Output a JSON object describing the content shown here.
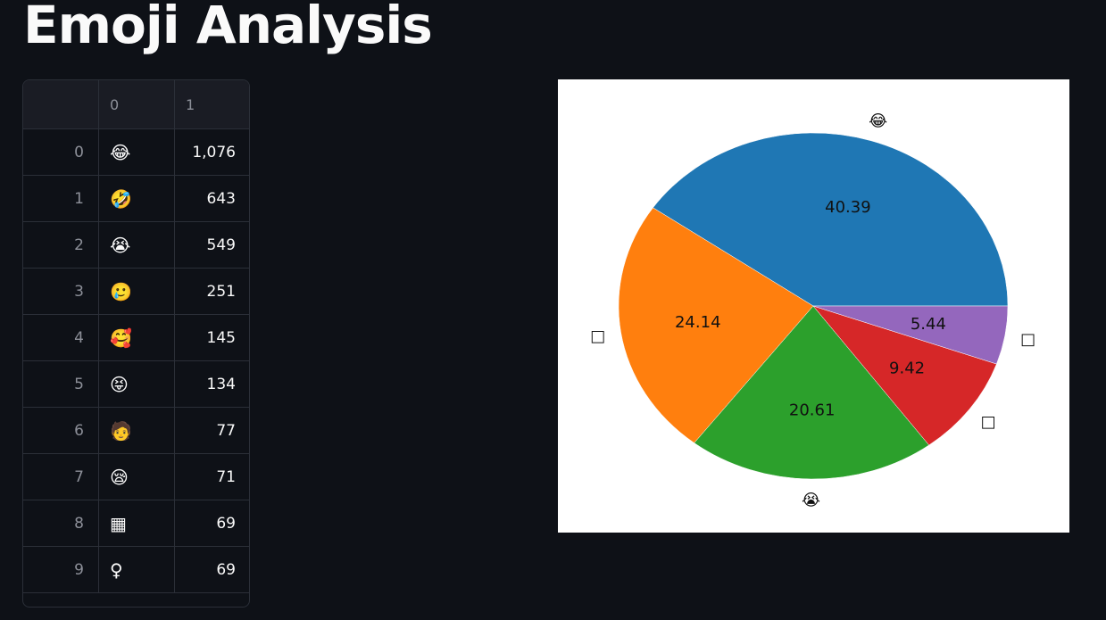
{
  "title": "Emoji Analysis",
  "table": {
    "columns": [
      "",
      "0",
      "1"
    ],
    "rows": [
      {
        "index": "0",
        "emoji": "😂",
        "count": "1,076"
      },
      {
        "index": "1",
        "emoji": "🤣",
        "count": "643"
      },
      {
        "index": "2",
        "emoji": "😭",
        "count": "549"
      },
      {
        "index": "3",
        "emoji": "🥲",
        "count": "251"
      },
      {
        "index": "4",
        "emoji": "🥰",
        "count": "145"
      },
      {
        "index": "5",
        "emoji": "😝",
        "count": "134"
      },
      {
        "index": "6",
        "emoji": "🧑",
        "count": "77"
      },
      {
        "index": "7",
        "emoji": "😪",
        "count": "71"
      },
      {
        "index": "8",
        "emoji": "▦",
        "count": "69"
      },
      {
        "index": "9",
        "emoji": "♀",
        "count": "69"
      }
    ]
  },
  "chart_data": {
    "type": "pie",
    "labels": [
      "😂",
      "□",
      "😭",
      "□",
      "□"
    ],
    "values": [
      40.39,
      24.14,
      20.61,
      9.42,
      5.44
    ],
    "value_labels": [
      "40.39",
      "24.14",
      "20.61",
      "9.42",
      "5.44"
    ],
    "colors": [
      "#1f77b4",
      "#ff7f0e",
      "#2ca02c",
      "#d62728",
      "#9467bd"
    ],
    "start_angle_deg": 0,
    "direction": "counterclockwise"
  }
}
